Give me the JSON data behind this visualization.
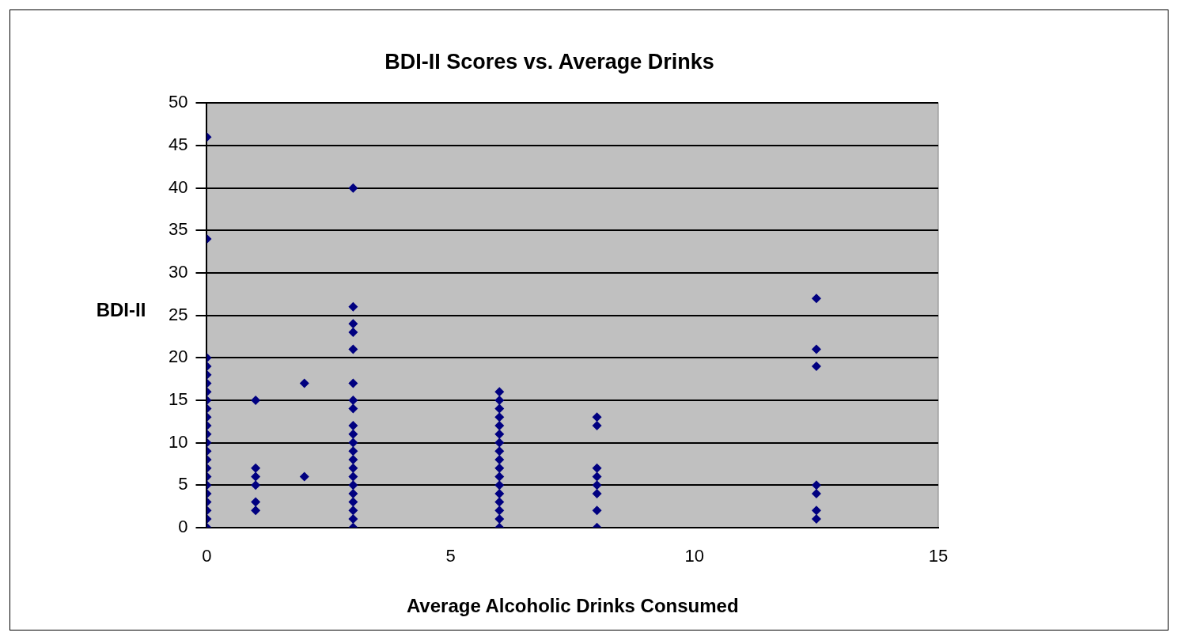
{
  "chart_data": {
    "type": "scatter",
    "title": "BDI-II Scores vs. Average Drinks",
    "xlabel": "Average Alcoholic Drinks Consumed",
    "ylabel": "BDI-II",
    "x": [
      0,
      0,
      0,
      0,
      0,
      0,
      0,
      0,
      0,
      0,
      0,
      0,
      0,
      0,
      0,
      0,
      0,
      0,
      0,
      0,
      0,
      0,
      0,
      1,
      1,
      1,
      1,
      1,
      1,
      2,
      2,
      3,
      3,
      3,
      3,
      3,
      3,
      3,
      3,
      3,
      3,
      3,
      3,
      3,
      3,
      3,
      3,
      3,
      3,
      3,
      3,
      3,
      6,
      6,
      6,
      6,
      6,
      6,
      6,
      6,
      6,
      6,
      6,
      6,
      6,
      6,
      6,
      6,
      6,
      8,
      8,
      8,
      8,
      8,
      8,
      8,
      8,
      12.5,
      12.5,
      12.5,
      12.5,
      12.5,
      12.5,
      12.5
    ],
    "series": [
      {
        "color": "#000080",
        "values": [
          46,
          34,
          20,
          19,
          18,
          17,
          16,
          15,
          14,
          13,
          12,
          11,
          10,
          9,
          8,
          7,
          6,
          5,
          4,
          3,
          2,
          1,
          0,
          15,
          7,
          6,
          5,
          3,
          2,
          17,
          6,
          40,
          26,
          24,
          23,
          21,
          17,
          15,
          14,
          12,
          11,
          10,
          9,
          8,
          7,
          6,
          5,
          4,
          3,
          2,
          1,
          0,
          0,
          1,
          2,
          3,
          4,
          5,
          6,
          7,
          8,
          9,
          10,
          11,
          12,
          13,
          14,
          15,
          16,
          13,
          12,
          7,
          6,
          5,
          4,
          2,
          0,
          27,
          21,
          19,
          5,
          4,
          2,
          1
        ]
      }
    ],
    "xlim": [
      0,
      15
    ],
    "xticks": [
      0,
      5,
      10,
      15
    ],
    "ylim": [
      0,
      50
    ],
    "yticks": [
      0,
      5,
      10,
      15,
      20,
      25,
      30,
      35,
      40,
      45,
      50
    ],
    "grid": "y",
    "legend": false,
    "marker": "diamond"
  }
}
